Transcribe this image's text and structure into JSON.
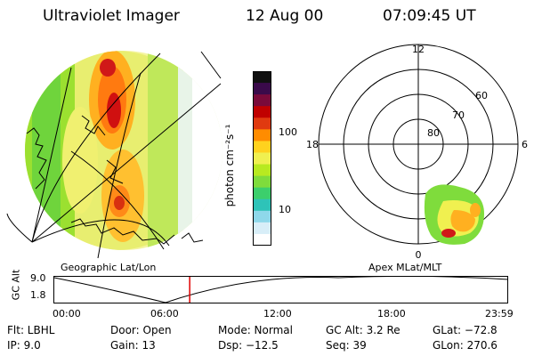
{
  "header": {
    "instrument": "Ultraviolet Imager",
    "date": "12 Aug 00",
    "time": "07:09:45 UT"
  },
  "left_panel": {
    "caption": "Geographic Lat/Lon"
  },
  "right_panel": {
    "caption": "Apex MLat/MLT",
    "lat_labels": [
      "80",
      "70",
      "60"
    ],
    "mlt_labels": {
      "top": "12",
      "left": "18",
      "right": "6",
      "bottom": "0"
    }
  },
  "colorbar": {
    "unit_label": "photon cm⁻²s⁻¹",
    "ticks": [
      "100",
      "10"
    ],
    "colors": [
      "#101010",
      "#3a0a4a",
      "#7a0a3a",
      "#c00000",
      "#e03a10",
      "#ff8c00",
      "#ffd21e",
      "#f0f050",
      "#b8ea20",
      "#7fdc3c",
      "#3ccf6c",
      "#2ec3b8",
      "#8ed8ea",
      "#d8eef8",
      "#ffffff"
    ]
  },
  "altitude_plot": {
    "ylabel": "GC Alt",
    "yticks": [
      "9.0",
      "1.8"
    ],
    "xticks": [
      "00:00",
      "06:00",
      "12:00",
      "18:00",
      "23:59"
    ],
    "marker_time_hours": 7.16
  },
  "info": {
    "flt": "Flt: LBHL",
    "ip": "IP:  9.0",
    "door": "Door: Open",
    "gain": "Gain: 13",
    "mode": "Mode: Normal",
    "dsp": "Dsp:  −12.5",
    "gcalt": "GC Alt: 3.2 Re",
    "seq": "Seq: 39",
    "glat": "GLat: −72.8",
    "glon": "GLon: 270.6"
  }
}
